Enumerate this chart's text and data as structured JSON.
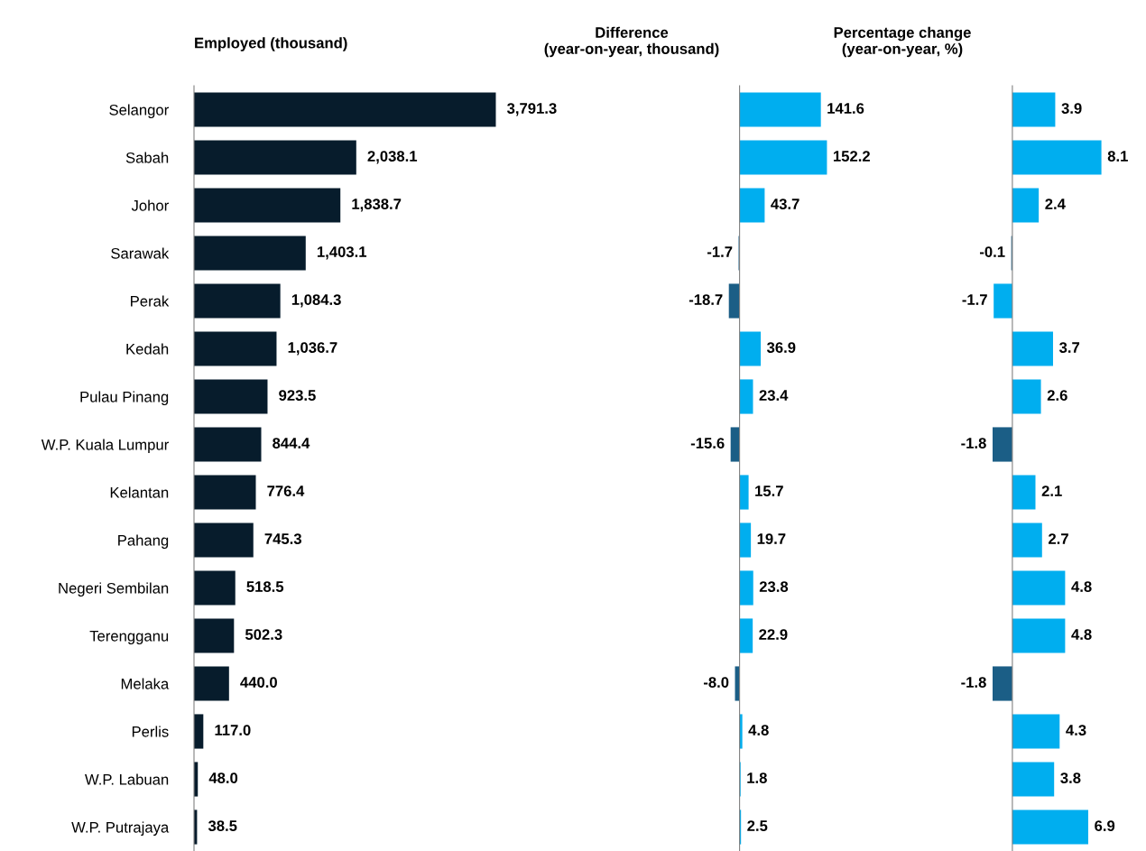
{
  "chart_data": [
    {
      "type": "bar",
      "orientation": "horizontal",
      "title": "Employed (thousand)",
      "categories": [
        "Selangor",
        "Sabah",
        "Johor",
        "Sarawak",
        "Perak",
        "Kedah",
        "Pulau Pinang",
        "W.P. Kuala Lumpur",
        "Kelantan",
        "Pahang",
        "Negeri Sembilan",
        "Terengganu",
        "Melaka",
        "Perlis",
        "W.P. Labuan",
        "W.P. Putrajaya"
      ],
      "values": [
        3791.3,
        2038.1,
        1838.7,
        1403.1,
        1084.3,
        1036.7,
        923.5,
        844.4,
        776.4,
        745.3,
        518.5,
        502.3,
        440.0,
        117.0,
        48.0,
        38.5
      ],
      "value_labels": [
        "3,791.3",
        "2,038.1",
        "1,838.7",
        "1,403.1",
        "1,084.3",
        "1,036.7",
        "923.5",
        "844.4",
        "776.4",
        "745.3",
        "518.5",
        "502.3",
        "440.0",
        "117.0",
        "48.0",
        "38.5"
      ],
      "color": "#071c2c",
      "tick_labels": "y",
      "grid": false,
      "legend": false
    },
    {
      "type": "bar",
      "orientation": "horizontal",
      "title": "Difference\n(year-on-year, thousand)",
      "categories": [
        null,
        null,
        null,
        null,
        null,
        null,
        null,
        null,
        null,
        null,
        null,
        null,
        null,
        null,
        null,
        null
      ],
      "values": [
        141.6,
        152.2,
        43.7,
        -1.7,
        -18.7,
        36.9,
        23.4,
        -15.6,
        15.7,
        19.7,
        23.8,
        22.9,
        -8.0,
        4.8,
        1.8,
        2.5
      ],
      "value_labels": [
        "141.6",
        "152.2",
        "43.7",
        "-1.7",
        "-18.7",
        "36.9",
        "23.4",
        "-15.6",
        "15.7",
        "19.7",
        "23.8",
        "22.9",
        "-8.0",
        "4.8",
        "1.8",
        "2.5"
      ],
      "colors": [
        "#00aeef",
        "#00aeef",
        "#00aeef",
        "#1b5e86",
        "#1b5e86",
        "#00aeef",
        "#00aeef",
        "#1b5e86",
        "#00aeef",
        "#00aeef",
        "#00aeef",
        "#00aeef",
        "#1b5e86",
        "#00aeef",
        "#00aeef",
        "#00aeef"
      ],
      "tick_labels": false,
      "grid": false,
      "legend": false
    },
    {
      "type": "bar",
      "orientation": "horizontal",
      "title": "Percentage change\n(year-on-year, %)",
      "categories": [
        null,
        null,
        null,
        null,
        null,
        null,
        null,
        null,
        null,
        null,
        null,
        null,
        null,
        null,
        null,
        null
      ],
      "values": [
        3.9,
        8.1,
        2.4,
        -0.1,
        -1.7,
        3.7,
        2.6,
        -1.8,
        2.1,
        2.7,
        4.8,
        4.8,
        -1.8,
        4.3,
        3.8,
        6.9
      ],
      "value_labels": [
        "3.9",
        "8.1",
        "2.4",
        "-0.1",
        "-1.7",
        "3.7",
        "2.6",
        "-1.8",
        "2.1",
        "2.7",
        "4.8",
        "4.8",
        "-1.8",
        "4.3",
        "3.8",
        "6.9"
      ],
      "colors": [
        "#00aeef",
        "#00aeef",
        "#00aeef",
        "#1b5e86",
        "#00aeef",
        "#00aeef",
        "#00aeef",
        "#1b5e86",
        "#00aeef",
        "#00aeef",
        "#00aeef",
        "#00aeef",
        "#1b5e86",
        "#00aeef",
        "#00aeef",
        "#00aeef"
      ],
      "tick_labels": false,
      "grid": false,
      "legend": false
    }
  ]
}
